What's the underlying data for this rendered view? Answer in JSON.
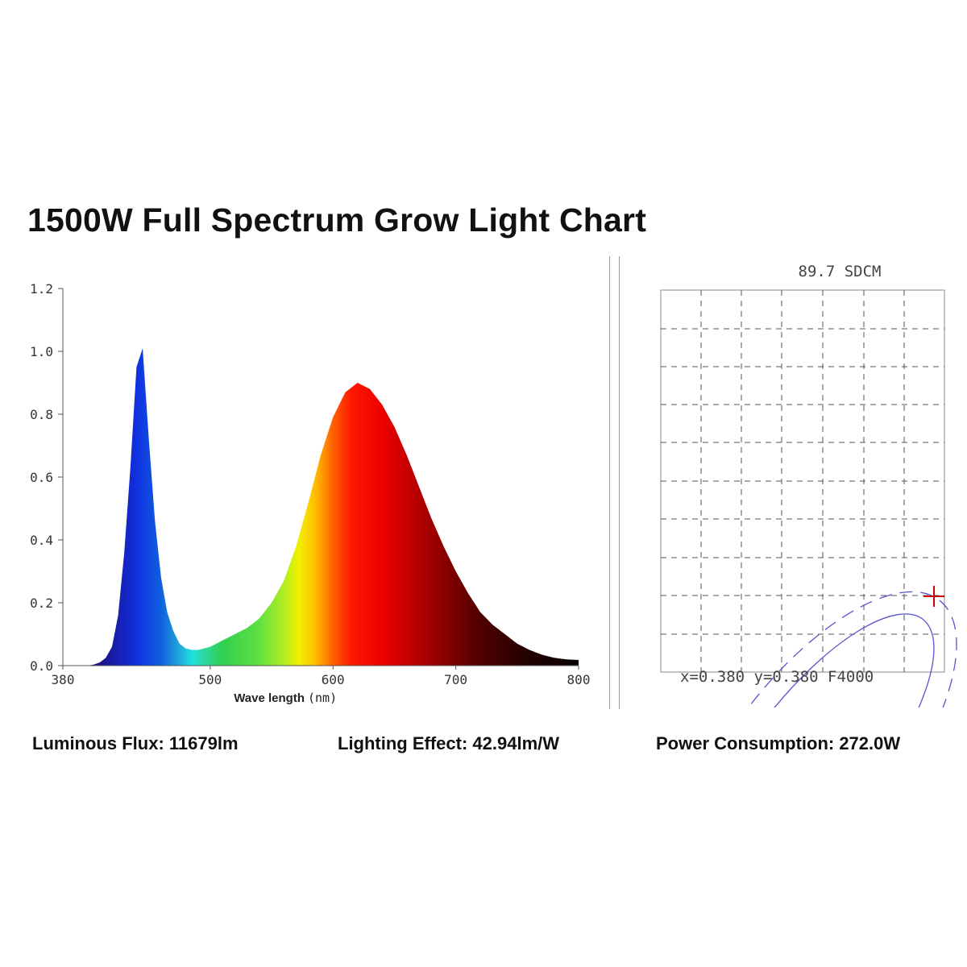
{
  "title": "1500W Full Spectrum Grow Light Chart",
  "stats": {
    "luminous_flux": "Luminous Flux: 11679lm",
    "lighting_effect": "Lighting Effect: 42.94lm/W",
    "power_consumption": "Power Consumption: 272.0W"
  },
  "chart_data": [
    {
      "type": "area",
      "xlabel": "Wave length",
      "xlabel_unit": "(nm)",
      "xlim": [
        380,
        800
      ],
      "ylim": [
        0,
        1.2
      ],
      "xticks": [
        380,
        500,
        600,
        700,
        800
      ],
      "yticks": [
        "0.0",
        "0.2",
        "0.4",
        "0.6",
        "0.8",
        "1.0",
        "1.2"
      ],
      "grid": false,
      "fill": "wavelength-colored spectrum",
      "series": [
        {
          "x": [
            380,
            400,
            405,
            410,
            415,
            420,
            425,
            430,
            435,
            440,
            445,
            450,
            455,
            460,
            465,
            470,
            475,
            480,
            485,
            490,
            495,
            500,
            505,
            510,
            520,
            530,
            540,
            550,
            560,
            570,
            580,
            590,
            600,
            610,
            620,
            630,
            640,
            650,
            660,
            670,
            680,
            690,
            700,
            710,
            720,
            730,
            740,
            750,
            760,
            770,
            780,
            790,
            800
          ],
          "y": [
            0.0,
            0.0,
            0.003,
            0.01,
            0.025,
            0.06,
            0.16,
            0.36,
            0.63,
            0.95,
            1.01,
            0.72,
            0.46,
            0.28,
            0.17,
            0.11,
            0.07,
            0.055,
            0.05,
            0.05,
            0.055,
            0.06,
            0.07,
            0.08,
            0.1,
            0.12,
            0.15,
            0.2,
            0.27,
            0.38,
            0.52,
            0.67,
            0.79,
            0.87,
            0.9,
            0.88,
            0.83,
            0.76,
            0.67,
            0.57,
            0.47,
            0.38,
            0.3,
            0.23,
            0.17,
            0.13,
            0.1,
            0.07,
            0.05,
            0.035,
            0.025,
            0.02,
            0.018
          ]
        }
      ]
    },
    {
      "type": "scatter",
      "title": "89.7 SDCM",
      "annotation": "x=0.380 y=0.380 F4000",
      "grid": true,
      "grid_style": "dashed",
      "ellipse_color": "#5050c8",
      "marker_color": "#cc0000",
      "marker": "cross at right edge"
    }
  ]
}
